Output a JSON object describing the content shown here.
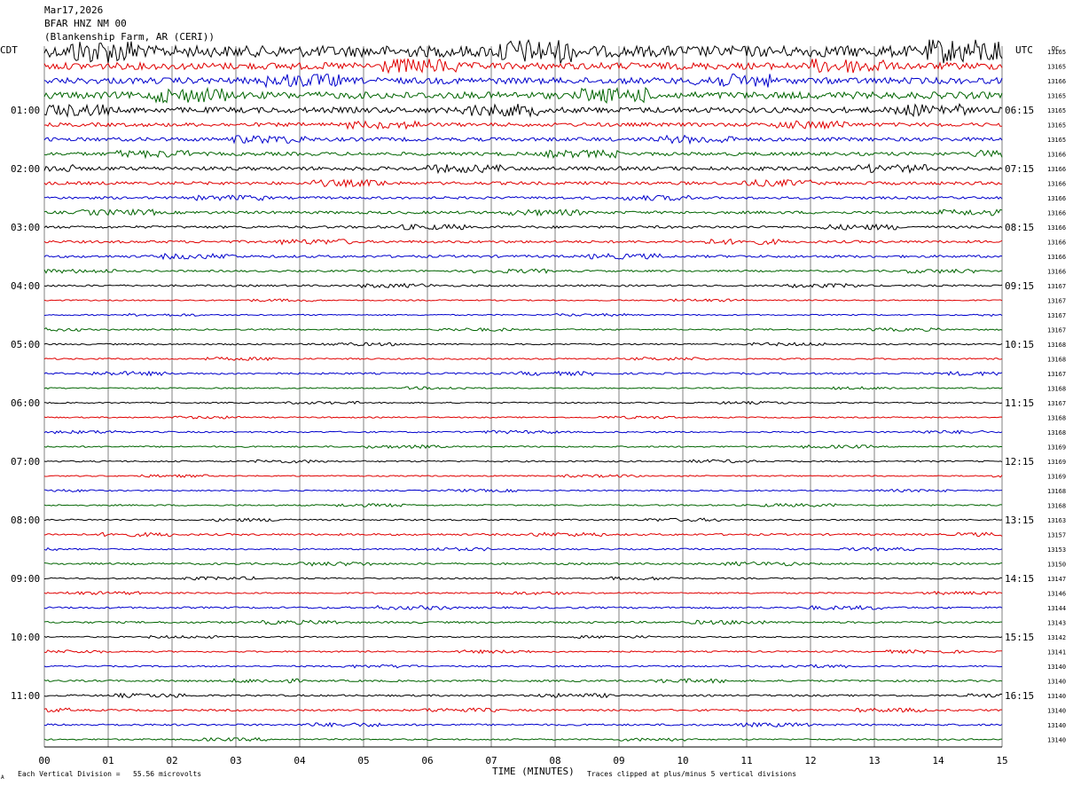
{
  "header": {
    "date": "Mar17,2026",
    "station": "BFAR HNZ NM 00",
    "location": "(Blankenship Farm, AR (CERI))"
  },
  "labels": {
    "left_tz": "CDT",
    "right_tz": "UTC",
    "dc": "DC",
    "x_axis": "TIME (MINUTES)",
    "scale_note": "Each Vertical Division =   55.56 microvolts",
    "clip_note": "Traces clipped at plus/minus 5 vertical divisions",
    "corner_mark": "A"
  },
  "colors": {
    "trace_cycle": [
      "#000000",
      "#e00000",
      "#0000cc",
      "#006400"
    ],
    "grid": "#808080",
    "text": "#000000"
  },
  "chart_data": {
    "type": "line",
    "description_kind": "helicorder",
    "x_ticks": [
      "00",
      "01",
      "02",
      "03",
      "04",
      "05",
      "06",
      "07",
      "08",
      "09",
      "10",
      "11",
      "12",
      "13",
      "14",
      "15"
    ],
    "xlim": [
      0,
      15
    ],
    "local_hour_labels": [
      "01:00",
      "02:00",
      "03:00",
      "04:00",
      "05:00",
      "06:00",
      "07:00",
      "08:00",
      "09:00",
      "10:00",
      "11:00"
    ],
    "utc_hour_labels": [
      "06:15",
      "07:15",
      "08:15",
      "09:15",
      "10:15",
      "11:15",
      "12:15",
      "13:15",
      "14:15",
      "15:15",
      "16:15"
    ],
    "trace_dc_offsets": [
      13165,
      13165,
      13166,
      13165,
      13165,
      13165,
      13165,
      13166,
      13166,
      13166,
      13166,
      13166,
      13166,
      13166,
      13166,
      13166,
      13167,
      13167,
      13167,
      13167,
      13168,
      13168,
      13167,
      13168,
      13167,
      13168,
      13168,
      13169,
      13169,
      13169,
      13168,
      13168,
      13163,
      13157,
      13153,
      13150,
      13147,
      13146,
      13144,
      13143,
      13142,
      13141,
      13140,
      13140,
      13140,
      13140,
      13140,
      13140
    ],
    "trace_activity": [
      0.9,
      0.55,
      0.5,
      0.55,
      0.45,
      0.3,
      0.3,
      0.28,
      0.3,
      0.25,
      0.2,
      0.22,
      0.2,
      0.2,
      0.2,
      0.15,
      0.15,
      0.1,
      0.1,
      0.12,
      0.12,
      0.12,
      0.15,
      0.1,
      0.1,
      0.1,
      0.12,
      0.12,
      0.12,
      0.1,
      0.1,
      0.12,
      0.12,
      0.15,
      0.12,
      0.15,
      0.12,
      0.12,
      0.15,
      0.15,
      0.1,
      0.12,
      0.12,
      0.15,
      0.15,
      0.15,
      0.15,
      0.12
    ]
  }
}
